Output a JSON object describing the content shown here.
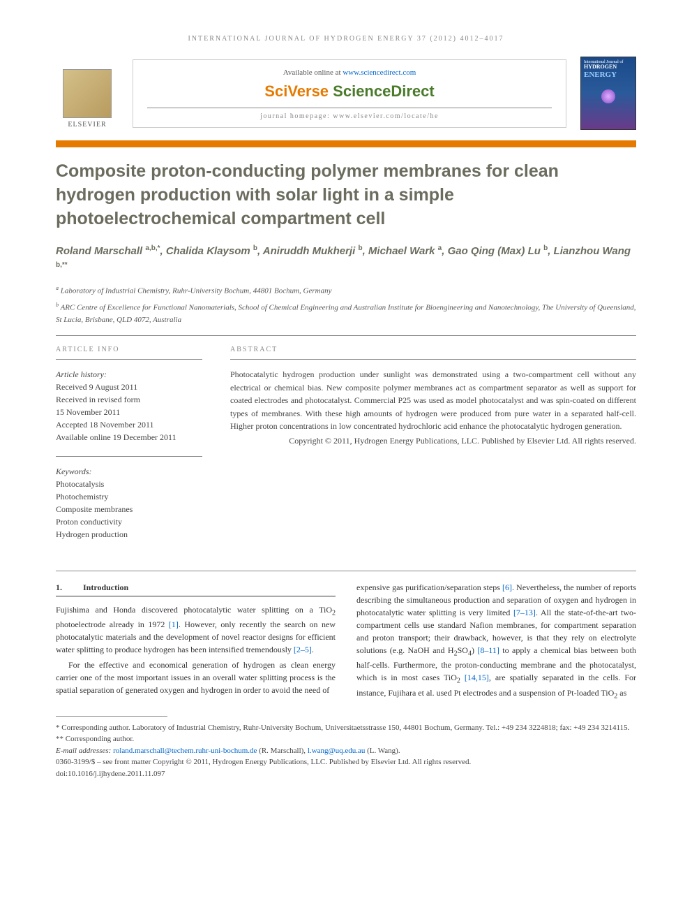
{
  "running_head": "INTERNATIONAL JOURNAL OF HYDROGEN ENERGY 37 (2012) 4012–4017",
  "header": {
    "available_pre": "Available online at ",
    "available_link": "www.sciencedirect.com",
    "sciverse_pre": "SciVerse ",
    "sciverse_main": "ScienceDirect",
    "homepage": "journal homepage: www.elsevier.com/locate/he",
    "elsevier": "ELSEVIER",
    "cover_line1": "International Journal of",
    "cover_line2": "HYDROGEN",
    "cover_line3": "ENERGY"
  },
  "title": "Composite proton-conducting polymer membranes for clean hydrogen production with solar light in a simple photoelectrochemical compartment cell",
  "authors_html": "Roland Marschall|a,b,*|, Chalida Klaysom|b|, Aniruddh Mukherji|b|, Michael Wark|a|, Gao Qing (Max) Lu|b|, Lianzhou Wang|b,**|",
  "affiliations": {
    "a": "Laboratory of Industrial Chemistry, Ruhr-University Bochum, 44801 Bochum, Germany",
    "b": "ARC Centre of Excellence for Functional Nanomaterials, School of Chemical Engineering and Australian Institute for Bioengineering and Nanotechnology, The University of Queensland, St Lucia, Brisbane, QLD 4072, Australia"
  },
  "article_info": {
    "head": "ARTICLE INFO",
    "history_label": "Article history:",
    "received": "Received 9 August 2011",
    "revised1": "Received in revised form",
    "revised2": "15 November 2011",
    "accepted": "Accepted 18 November 2011",
    "online": "Available online 19 December 2011",
    "keywords_label": "Keywords:",
    "keywords": [
      "Photocatalysis",
      "Photochemistry",
      "Composite membranes",
      "Proton conductivity",
      "Hydrogen production"
    ]
  },
  "abstract": {
    "head": "ABSTRACT",
    "text": "Photocatalytic hydrogen production under sunlight was demonstrated using a two-compartment cell without any electrical or chemical bias. New composite polymer membranes act as compartment separator as well as support for coated electrodes and photocatalyst. Commercial P25 was used as model photocatalyst and was spin-coated on different types of membranes. With these high amounts of hydrogen were produced from pure water in a separated half-cell. Higher proton concentrations in low concentrated hydrochloric acid enhance the photocatalytic hydrogen generation.",
    "copyright": "Copyright © 2011, Hydrogen Energy Publications, LLC. Published by Elsevier Ltd. All rights reserved."
  },
  "section": {
    "num": "1.",
    "title": "Introduction"
  },
  "body": {
    "p1a": "Fujishima and Honda discovered photocatalytic water splitting on a TiO",
    "p1b": " photoelectrode already in 1972 ",
    "p1c": ". However, only recently the search on new photocatalytic materials and the development of novel reactor designs for efficient water splitting to produce hydrogen has been intensified tremendously ",
    "p1d": ".",
    "p2": "For the effective and economical generation of hydrogen as clean energy carrier one of the most important issues in an overall water splitting process is the spatial separation of generated oxygen and hydrogen in order to avoid the need of",
    "p3a": "expensive gas purification/separation steps ",
    "p3b": ". Nevertheless, the number of reports describing the simultaneous production and separation of oxygen and hydrogen in photocatalytic water splitting is very limited ",
    "p3c": ". All the state-of-the-art two-compartment cells use standard Nafion membranes, for compartment separation and proton transport; their drawback, however, is that they rely on electrolyte solutions (e.g. NaOH and H",
    "p3d": "SO",
    "p3e": ") ",
    "p3f": " to apply a chemical bias between both half-cells. Furthermore, the proton-conducting membrane and the photocatalyst, which is in most cases TiO",
    "p3g": " ",
    "p3h": ", are spatially separated in the cells. For instance, Fujihara et al. used Pt electrodes and a suspension of Pt-loaded TiO",
    "p3i": " as"
  },
  "refs": {
    "r1": "[1]",
    "r2_5": "[2–5]",
    "r6": "[6]",
    "r7_13": "[7–13]",
    "r8_11": "[8–11]",
    "r14_15": "[14,15]"
  },
  "footnotes": {
    "corr1": "* Corresponding author. Laboratory of Industrial Chemistry, Ruhr-University Bochum, Universitaetsstrasse 150, 44801 Bochum, Germany. Tel.: +49 234 3224818; fax: +49 234 3214115.",
    "corr2": "** Corresponding author.",
    "email_label": "E-mail addresses: ",
    "email1": "roland.marschall@techem.ruhr-uni-bochum.de",
    "email1_name": " (R. Marschall), ",
    "email2": "l.wang@uq.edu.au",
    "email2_name": " (L. Wang).",
    "issn": "0360-3199/$ – see front matter Copyright © 2011, Hydrogen Energy Publications, LLC. Published by Elsevier Ltd. All rights reserved.",
    "doi": "doi:10.1016/j.ijhydene.2011.11.097"
  },
  "colors": {
    "orange": "#e67a00",
    "title_gray": "#6b6b5e",
    "link_blue": "#0066cc"
  }
}
